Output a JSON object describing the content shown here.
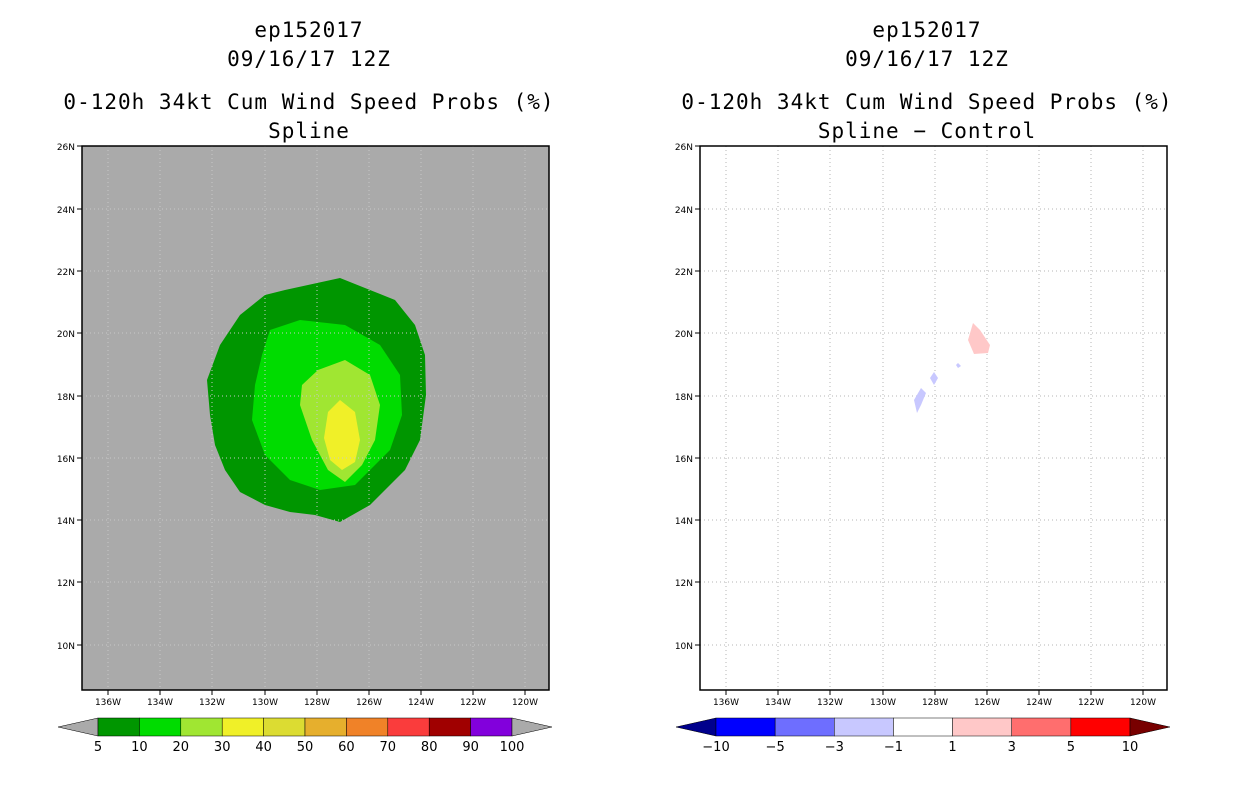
{
  "panels": [
    {
      "storm_id": "ep152017",
      "datetime": "09/16/17 12Z",
      "product": "0-120h 34kt Cum Wind Speed Probs (%)",
      "subtitle": "Spline",
      "background": "#aaaaaa",
      "colorbar": {
        "labels": [
          "5",
          "10",
          "20",
          "30",
          "40",
          "50",
          "60",
          "70",
          "80",
          "90",
          "100"
        ],
        "colors": [
          "#009600",
          "#00dc00",
          "#a0e632",
          "#f0f028",
          "#dcdc32",
          "#e6af2d",
          "#f08228",
          "#fa3c3c",
          "#a00000",
          "#8200dc"
        ],
        "under_color": "#aaaaaa",
        "over_color": "#aaaaaa"
      }
    },
    {
      "storm_id": "ep152017",
      "datetime": "09/16/17 12Z",
      "product": "0-120h 34kt Cum Wind Speed Probs (%)",
      "subtitle": "Spline − Control",
      "background": "#ffffff",
      "colorbar": {
        "labels": [
          "−10",
          "−5",
          "−3",
          "−1",
          "1",
          "3",
          "5",
          "10"
        ],
        "colors": [
          "#0000ff",
          "#6e6eff",
          "#c8c8ff",
          "#ffffff",
          "#ffc8c8",
          "#ff6e6e",
          "#ff0000"
        ],
        "under_color": "#00008c",
        "over_color": "#780000"
      }
    }
  ],
  "axes": {
    "lat_labels": [
      "26N",
      "24N",
      "22N",
      "20N",
      "18N",
      "16N",
      "14N",
      "12N",
      "10N"
    ],
    "lon_labels": [
      "136W",
      "134W",
      "132W",
      "130W",
      "128W",
      "126W",
      "124W",
      "122W",
      "120W"
    ]
  }
}
